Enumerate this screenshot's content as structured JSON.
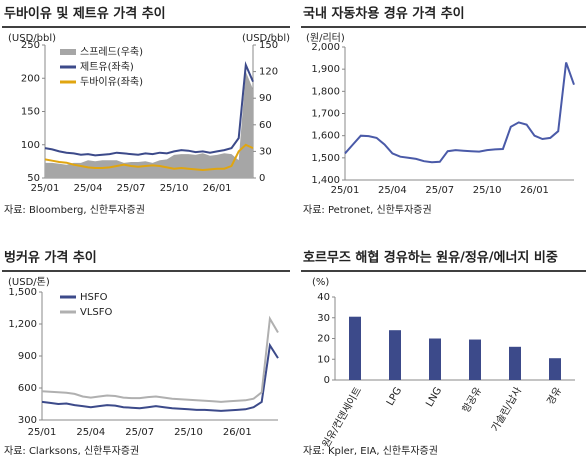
{
  "chart_data": [
    {
      "type": "line",
      "title": "두바이유 및 제트유 가격 추이",
      "source": "자료: Bloomberg, 신한투자증권",
      "y_label": "(USD/bbl)",
      "y2_label": "(USD/bbl)",
      "categories": [
        "25/01",
        null,
        null,
        null,
        null,
        null,
        "25/04",
        null,
        null,
        null,
        null,
        null,
        "25/07",
        null,
        null,
        null,
        null,
        null,
        "25/10",
        null,
        null,
        null,
        null,
        null,
        "26/01",
        null,
        null,
        null,
        null,
        null
      ],
      "series": [
        {
          "name": "스프레드(우축)",
          "color": "#a6a6a6",
          "kind": "area",
          "axis": "y2",
          "values": [
            17,
            17,
            16,
            15,
            17,
            17,
            20,
            19,
            20,
            20,
            20,
            17,
            18,
            18,
            19,
            17,
            20,
            21,
            26,
            27,
            27,
            26,
            28,
            25,
            26,
            28,
            27,
            20,
            120,
            100
          ]
        },
        {
          "name": "제트유(좌축)",
          "color": "#3c4a8a",
          "kind": "line",
          "values": [
            95,
            93,
            90,
            88,
            87,
            85,
            86,
            84,
            85,
            86,
            88,
            87,
            86,
            85,
            87,
            86,
            88,
            87,
            90,
            92,
            91,
            89,
            90,
            88,
            90,
            92,
            95,
            110,
            220,
            195
          ]
        },
        {
          "name": "두바이유(좌축)",
          "color": "#e0a510",
          "kind": "line",
          "values": [
            78,
            76,
            74,
            73,
            70,
            68,
            66,
            65,
            65,
            66,
            68,
            70,
            68,
            67,
            68,
            69,
            68,
            66,
            64,
            65,
            64,
            63,
            62,
            63,
            64,
            64,
            68,
            90,
            100,
            95
          ]
        }
      ],
      "ylim": [
        50,
        250
      ],
      "yticks": [
        50,
        100,
        150,
        200,
        250
      ],
      "y2lim": [
        0,
        150
      ],
      "y2ticks": [
        0,
        30,
        60,
        90,
        120,
        150
      ],
      "legend": "upper left",
      "grid": false
    },
    {
      "type": "line",
      "title": "국내 자동차용 경유 가격 추이",
      "source": "자료: Petronet, 신한투자증권",
      "y_label": "(원/리터)",
      "categories": [
        "25/01",
        null,
        null,
        null,
        null,
        null,
        "25/04",
        null,
        null,
        null,
        null,
        null,
        "25/07",
        null,
        null,
        null,
        null,
        null,
        "25/10",
        null,
        null,
        null,
        null,
        null,
        "26/01",
        null,
        null,
        null,
        null,
        null
      ],
      "series": [
        {
          "name": "경유",
          "color": "#4a5aa8",
          "kind": "line",
          "values": [
            1520,
            1560,
            1600,
            1598,
            1590,
            1560,
            1520,
            1505,
            1500,
            1495,
            1485,
            1480,
            1482,
            1530,
            1535,
            1532,
            1530,
            1528,
            1535,
            1538,
            1540,
            1640,
            1660,
            1650,
            1600,
            1585,
            1590,
            1620,
            1930,
            1830
          ]
        }
      ],
      "ylim": [
        1400,
        2000
      ],
      "yticks": [
        {
          "value": 1400,
          "label": "1,400"
        },
        {
          "value": 1500,
          "label": "1,500"
        },
        {
          "value": 1600,
          "label": "1,600"
        },
        {
          "value": 1700,
          "label": "1,700"
        },
        {
          "value": 1800,
          "label": "1,800"
        },
        {
          "value": 1900,
          "label": "1,900"
        },
        {
          "value": 2000,
          "label": "2,000"
        }
      ],
      "legend": "none",
      "grid": false
    },
    {
      "type": "line",
      "title": "벙커유 가격 추이",
      "source": "자료: Clarksons, 신한투자증권",
      "y_label": "(USD/톤)",
      "categories": [
        "25/01",
        null,
        null,
        null,
        null,
        null,
        "25/04",
        null,
        null,
        null,
        null,
        null,
        "25/07",
        null,
        null,
        null,
        null,
        null,
        "25/10",
        null,
        null,
        null,
        null,
        null,
        "26/01",
        null,
        null,
        null,
        null,
        null
      ],
      "series": [
        {
          "name": "HSFO",
          "color": "#3c4a8a",
          "kind": "line",
          "values": [
            470,
            460,
            450,
            455,
            440,
            430,
            420,
            430,
            440,
            435,
            420,
            415,
            410,
            420,
            430,
            420,
            410,
            405,
            400,
            395,
            395,
            390,
            385,
            390,
            395,
            400,
            420,
            470,
            1000,
            880
          ]
        },
        {
          "name": "VLSFO",
          "color": "#b0b0b0",
          "kind": "line",
          "values": [
            570,
            565,
            560,
            555,
            545,
            520,
            510,
            520,
            530,
            525,
            510,
            505,
            505,
            515,
            520,
            510,
            500,
            495,
            490,
            485,
            480,
            475,
            470,
            475,
            480,
            485,
            500,
            560,
            1250,
            1120
          ]
        }
      ],
      "ylim": [
        300,
        1500
      ],
      "yticks": [
        300,
        600,
        900,
        {
          "value": 1200,
          "label": "1,200"
        },
        {
          "value": 1500,
          "label": "1,500"
        }
      ],
      "legend": "upper left",
      "grid": false
    },
    {
      "type": "bar",
      "title": "호르무즈 해협 경유하는 원유/정유/에너지 비중",
      "source": "자료: Kpler, EIA, 신한투자증권",
      "y_label": "(%)",
      "categories": [
        "원유/컨덴세이트",
        "LPG",
        "LNG",
        "항공유",
        "가솔린/납사",
        "경유"
      ],
      "values": [
        30.5,
        24,
        20,
        19.5,
        16,
        10.5
      ],
      "color": "#3c4a8a",
      "ylim": [
        0,
        40
      ],
      "yticks": [
        0,
        10,
        20,
        30,
        40
      ],
      "grid": false
    }
  ]
}
